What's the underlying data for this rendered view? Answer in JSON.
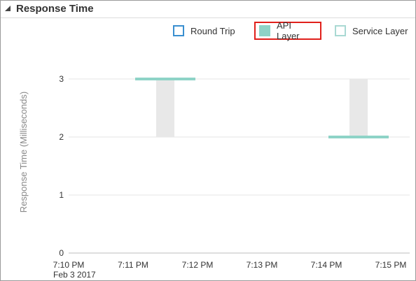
{
  "panel": {
    "title": "Response Time"
  },
  "legend": [
    {
      "label": "Round Trip",
      "fill": "#ffffff",
      "stroke": "#3a8fd0",
      "selected": false
    },
    {
      "label": "API Layer",
      "fill": "#8ed3c7",
      "stroke": "#8ed3c7",
      "selected": true
    },
    {
      "label": "Service Layer",
      "fill": "#ffffff",
      "stroke": "#a9d9d3",
      "selected": false
    }
  ],
  "chart_data": {
    "type": "bar",
    "ylabel": "Response Time (Milliseconds)",
    "ylim": [
      0,
      3
    ],
    "yticks": [
      0,
      1,
      2,
      3
    ],
    "xticks": [
      "7:10 PM",
      "7:11 PM",
      "7:12 PM",
      "7:13 PM",
      "7:14 PM",
      "7:15 PM"
    ],
    "xtick_sublabel": "Feb 3 2017",
    "grid": true,
    "legend_position": "top-right",
    "series": [
      {
        "name": "API Layer",
        "color": "#8ed3c7",
        "points": [
          {
            "x": "7:11:30 PM",
            "value": 3,
            "range": [
              2,
              3
            ]
          },
          {
            "x": "7:14:30 PM",
            "value": 2,
            "range": [
              2,
              3
            ]
          }
        ]
      }
    ],
    "range_color": "#e8e8e8"
  }
}
